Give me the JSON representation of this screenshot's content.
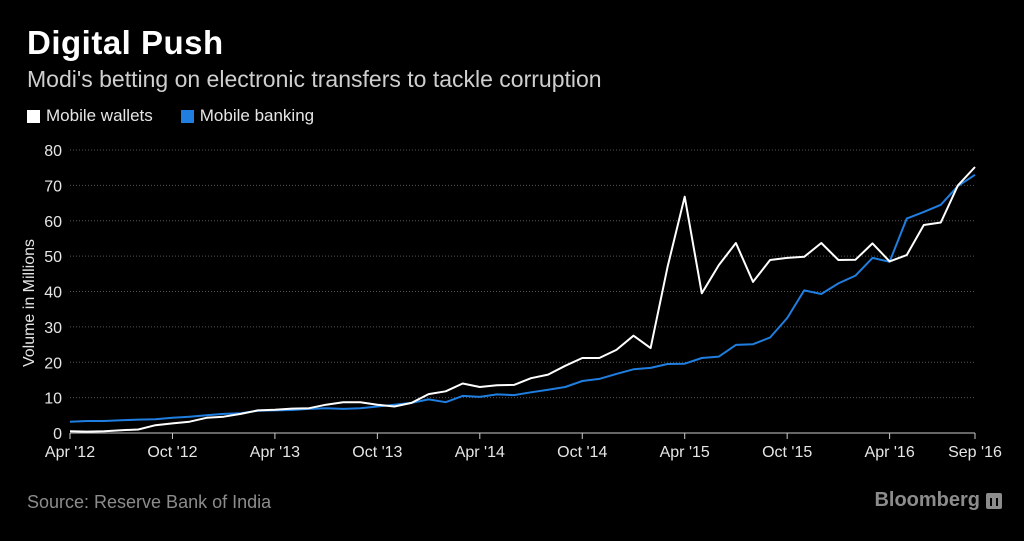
{
  "header": {
    "title": "Digital Push",
    "subtitle": "Modi's betting on electronic transfers to tackle corruption"
  },
  "footer": {
    "source": "Source: Reserve Bank of India",
    "brand": "Bloomberg"
  },
  "colors": {
    "background": "#000000",
    "mobile_wallets": "#ffffff",
    "mobile_banking": "#1f7ee0",
    "grid": "#555555",
    "axis_text": "#e6e6e6"
  },
  "chart_data": {
    "type": "line",
    "title": "Digital Push",
    "subtitle": "Modi's betting on electronic transfers to tackle corruption",
    "xlabel": "",
    "ylabel": "Volume in Millions",
    "ylim": [
      0,
      80
    ],
    "yticks": [
      0,
      10,
      20,
      30,
      40,
      50,
      60,
      70,
      80
    ],
    "grid": true,
    "legend_position": "top-left",
    "x_tick_labels": [
      "Apr '12",
      "Oct '12",
      "Apr '13",
      "Oct '13",
      "Apr '14",
      "Oct '14",
      "Apr '15",
      "Oct '15",
      "Apr '16",
      "Sep '16"
    ],
    "x_tick_months": [
      0,
      6,
      12,
      18,
      24,
      30,
      36,
      42,
      48,
      53
    ],
    "x_months": [
      0,
      1,
      2,
      3,
      4,
      5,
      6,
      7,
      8,
      9,
      10,
      11,
      12,
      13,
      14,
      15,
      16,
      17,
      18,
      19,
      20,
      21,
      22,
      23,
      24,
      25,
      26,
      27,
      28,
      29,
      30,
      31,
      32,
      33,
      34,
      35,
      36,
      37,
      38,
      39,
      40,
      41,
      42,
      43,
      44,
      45,
      46,
      47,
      48,
      49,
      50,
      51,
      52,
      53
    ],
    "series": [
      {
        "name": "Mobile wallets",
        "color": "#ffffff",
        "values": [
          0.5,
          0.4,
          0.5,
          0.8,
          1.0,
          2.2,
          2.7,
          3.2,
          4.3,
          4.6,
          5.4,
          6.4,
          6.6,
          6.9,
          7.0,
          8.0,
          8.7,
          8.7,
          8.0,
          7.5,
          8.5,
          11.0,
          11.8,
          14.0,
          13.0,
          13.5,
          13.6,
          15.5,
          16.5,
          19.0,
          21.2,
          21.2,
          23.5,
          27.5,
          24.0,
          47.0,
          66.8,
          39.5,
          47.5,
          53.7,
          42.7,
          48.9,
          49.5,
          49.8,
          53.7,
          48.9,
          49.0,
          53.6,
          48.5,
          50.3,
          58.8,
          59.5,
          70.0,
          75.2
        ]
      },
      {
        "name": "Mobile banking",
        "color": "#1f7ee0",
        "values": [
          3.2,
          3.4,
          3.4,
          3.6,
          3.8,
          3.9,
          4.3,
          4.6,
          5.0,
          5.4,
          5.6,
          6.3,
          6.4,
          6.5,
          6.8,
          7.0,
          6.8,
          7.0,
          7.5,
          8.0,
          8.5,
          9.5,
          8.7,
          10.5,
          10.2,
          10.9,
          10.7,
          11.5,
          12.2,
          13.0,
          14.7,
          15.3,
          16.7,
          18.0,
          18.4,
          19.5,
          19.6,
          21.2,
          21.6,
          24.9,
          25.1,
          27.0,
          32.5,
          40.3,
          39.3,
          42.3,
          44.5,
          49.5,
          48.4,
          60.6,
          62.5,
          64.5,
          69.8,
          73.0
        ]
      }
    ]
  }
}
